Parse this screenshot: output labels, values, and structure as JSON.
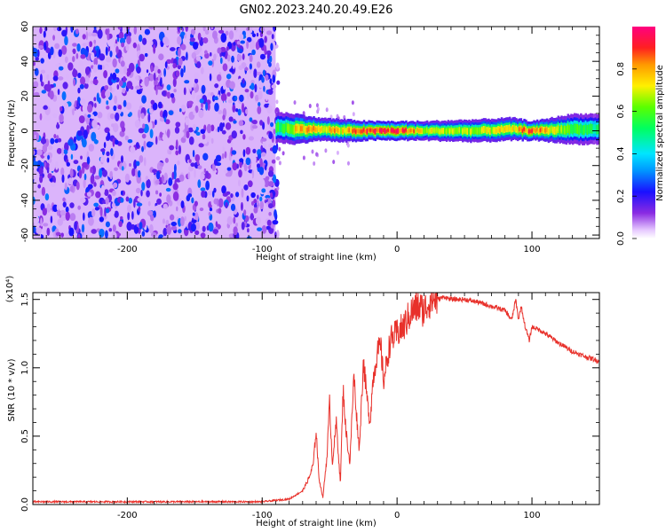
{
  "title": "GN02.2023.240.20.49.E26",
  "chart_data": [
    {
      "type": "heatmap",
      "xlabel": "Height of straight line (km)",
      "ylabel": "Frequency (Hz)",
      "xlim": [
        -270,
        150
      ],
      "ylim": [
        -62,
        60
      ],
      "xticks": [
        -200,
        -100,
        0,
        100
      ],
      "yticks": [
        -60,
        -40,
        -20,
        0,
        20,
        40,
        60
      ],
      "grid": false,
      "colorbar": {
        "label": "Normalized spectral amplitude",
        "range": [
          0,
          1
        ],
        "ticks": [
          "0.0",
          "0.2",
          "0.4",
          "0.6",
          "0.8"
        ]
      },
      "regions": [
        {
          "x": [
            -270,
            -90
          ],
          "description_values": {
            "amplitude_min": 0.05,
            "amplitude_max": 0.3,
            "freq_span": [
              -62,
              60
            ]
          }
        },
        {
          "x": [
            -90,
            150
          ],
          "description_values": {
            "amplitude_min": 0.3,
            "amplitude_max": 1.0,
            "freq_center": 0
          }
        }
      ],
      "ridge": [
        {
          "x": -90,
          "freq_center": 2,
          "half_width": 4,
          "peak": 0.55
        },
        {
          "x": -75,
          "freq_center": 1,
          "half_width": 4,
          "peak": 0.8
        },
        {
          "x": -60,
          "freq_center": 1,
          "half_width": 3,
          "peak": 0.85
        },
        {
          "x": -40,
          "freq_center": 0,
          "half_width": 3,
          "peak": 0.8
        },
        {
          "x": -20,
          "freq_center": 0,
          "half_width": 2.5,
          "peak": 1.0
        },
        {
          "x": 0,
          "freq_center": 0,
          "half_width": 2.5,
          "peak": 1.0
        },
        {
          "x": 20,
          "freq_center": 0,
          "half_width": 2.5,
          "peak": 0.75
        },
        {
          "x": 60,
          "freq_center": 0,
          "half_width": 3,
          "peak": 0.7
        },
        {
          "x": 85,
          "freq_center": 1,
          "half_width": 3,
          "peak": 0.8
        },
        {
          "x": 100,
          "freq_center": 0,
          "half_width": 2.5,
          "peak": 0.95
        },
        {
          "x": 130,
          "freq_center": 1,
          "half_width": 4,
          "peak": 0.6
        },
        {
          "x": 150,
          "freq_center": 1,
          "half_width": 4,
          "peak": 0.55
        }
      ]
    },
    {
      "type": "line",
      "xlabel": "Height of straight line (km)",
      "ylabel": "SNR (10 * v/v)",
      "multiplier": "(x10⁴)",
      "xlim": [
        -270,
        150
      ],
      "ylim": [
        0,
        1.55
      ],
      "xticks": [
        -200,
        -100,
        0,
        100
      ],
      "yticks": [
        0.0,
        0.5,
        1.0,
        1.5
      ],
      "grid": false,
      "color": "#e8302a",
      "series": [
        {
          "x": [
            -270,
            -200,
            -150,
            -100,
            -80,
            -70,
            -65,
            -62,
            -60,
            -58,
            -55,
            -52,
            -50,
            -48,
            -45,
            -42,
            -40,
            -38,
            -35,
            -32,
            -30,
            -28,
            -25,
            -22,
            -20,
            -18,
            -15,
            -12,
            -10,
            -5,
            0,
            5,
            10,
            15,
            20,
            25,
            30,
            35,
            40,
            50,
            60,
            70,
            80,
            85,
            88,
            90,
            92,
            95,
            98,
            100,
            105,
            110,
            120,
            130,
            140,
            150
          ],
          "values": [
            0.02,
            0.02,
            0.02,
            0.02,
            0.04,
            0.1,
            0.2,
            0.3,
            0.55,
            0.2,
            0.05,
            0.35,
            0.75,
            0.3,
            0.6,
            0.15,
            0.85,
            0.55,
            0.3,
            0.95,
            0.65,
            0.4,
            1.05,
            0.75,
            0.6,
            0.9,
            1.1,
            1.15,
            0.9,
            1.2,
            1.25,
            1.3,
            1.4,
            1.45,
            1.42,
            1.5,
            1.5,
            1.52,
            1.5,
            1.5,
            1.48,
            1.45,
            1.42,
            1.35,
            1.5,
            1.35,
            1.45,
            1.3,
            1.2,
            1.3,
            1.28,
            1.25,
            1.18,
            1.12,
            1.08,
            1.05
          ]
        }
      ]
    }
  ]
}
